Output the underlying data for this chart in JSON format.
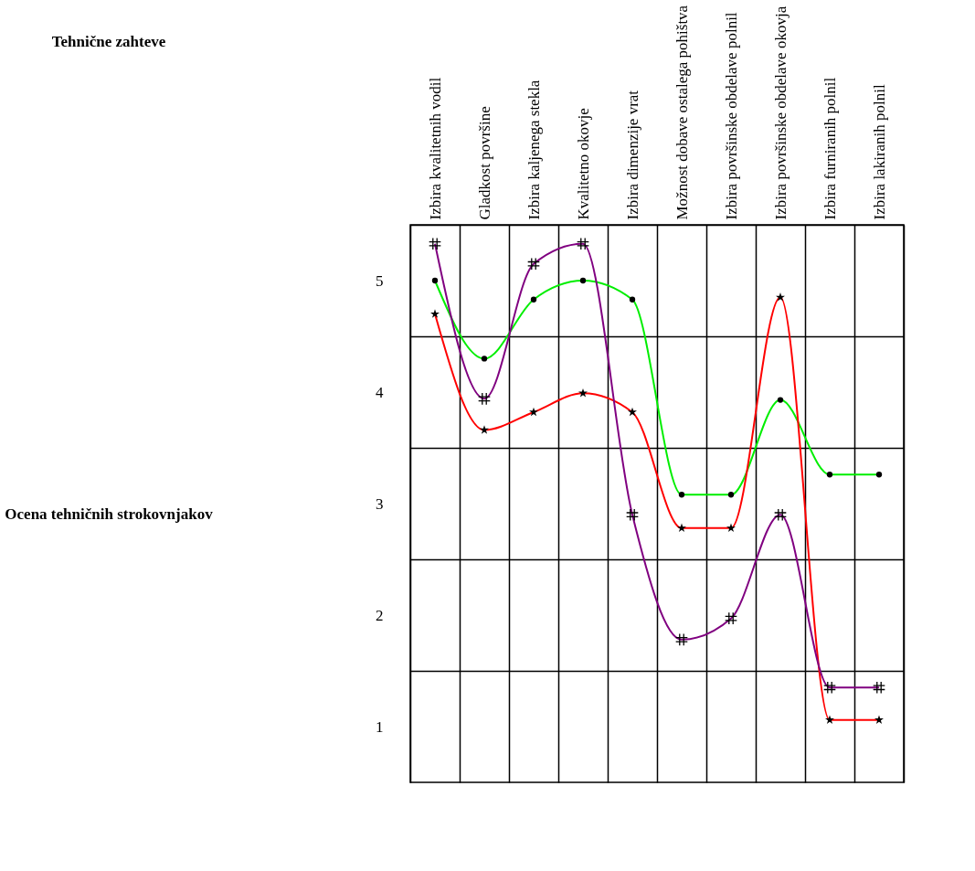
{
  "chart_data": {
    "type": "line",
    "annotations": [
      "Tehnične zahteve",
      "Ocena tehničnih strokovnjakov"
    ],
    "categories": [
      "Izbira kvalitetnih vodil",
      "Gladkost površine",
      "Izbira kaljenega stekla",
      "Kvalitetno okovje",
      "Izbira dimenzije vrat",
      "Možnost dobave ostalega pohištva",
      "Izbira površinske obdelave polnil",
      "Izbira površinske obdelave okovja",
      "Izbira furniranih polnil",
      "Izbira lakiranih polnil"
    ],
    "series": [
      {
        "color": "#00ee00",
        "marker": "circle",
        "values": [
          5.0,
          4.3,
          4.83,
          5.0,
          4.83,
          3.08,
          3.08,
          3.93,
          3.26,
          3.26
        ]
      },
      {
        "color": "#ff0000",
        "marker": "star",
        "values": [
          4.7,
          3.66,
          3.82,
          3.99,
          3.82,
          2.78,
          2.78,
          4.85,
          1.06,
          1.06
        ]
      },
      {
        "color": "#800080",
        "marker": "cross",
        "values": [
          5.33,
          3.94,
          5.15,
          5.33,
          2.9,
          1.78,
          1.97,
          2.9,
          1.35,
          1.35
        ]
      }
    ],
    "ylim": [
      0.5,
      5.5
    ],
    "yticks": [
      1,
      2,
      3,
      4,
      5
    ],
    "grid": true
  }
}
